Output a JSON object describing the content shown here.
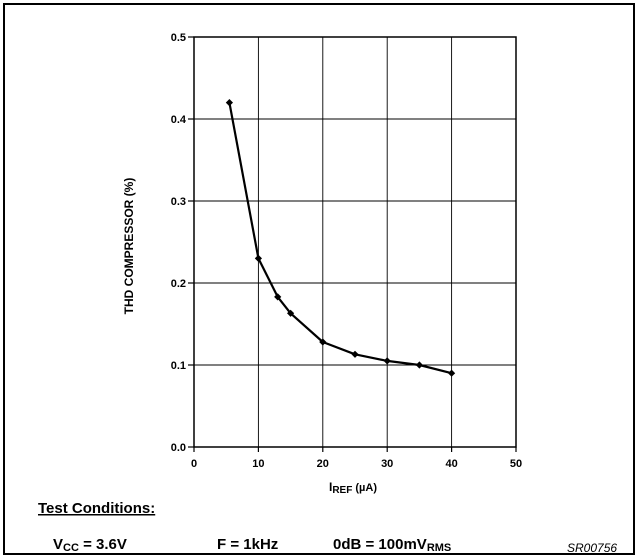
{
  "chart_data": {
    "type": "line",
    "x": [
      5.5,
      10,
      13,
      15,
      20,
      25,
      30,
      35,
      40
    ],
    "y": [
      0.42,
      0.23,
      0.183,
      0.163,
      0.128,
      0.113,
      0.105,
      0.1,
      0.09
    ],
    "xlim": [
      0,
      50
    ],
    "ylim": [
      0,
      0.5
    ],
    "xticks": [
      0,
      10,
      20,
      30,
      40,
      50
    ],
    "yticks": [
      0.0,
      0.1,
      0.2,
      0.3,
      0.4,
      0.5
    ],
    "xtick_labels": [
      "0",
      "10",
      "20",
      "30",
      "40",
      "50"
    ],
    "ytick_labels": [
      "0.0",
      "0.1",
      "0.2",
      "0.3",
      "0.4",
      "0.5"
    ],
    "grid": true,
    "marker": "diamond",
    "line_color": "#000000",
    "xlabel": {
      "main": "I",
      "sub": "REF",
      "unit": " (µA)"
    },
    "ylabel": "THD COMPRESSOR (%)"
  },
  "conditions": {
    "title": "Test Conditions:",
    "vcc_main": "V",
    "vcc_sub": "CC",
    "vcc_value": " = 3.6V",
    "freq": "F = 1kHz",
    "db_main": "0dB = 100mV",
    "db_sub": "RMS"
  },
  "figure_code": "SR00756"
}
